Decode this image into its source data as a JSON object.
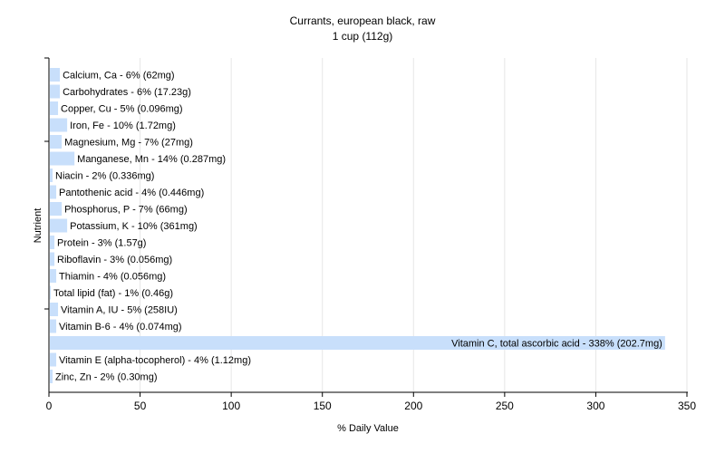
{
  "chart_data": {
    "type": "bar",
    "orientation": "horizontal",
    "title": "Currants, european black, raw",
    "subtitle": "1 cup (112g)",
    "xlabel": "% Daily Value",
    "ylabel": "Nutrient",
    "xlim": [
      0,
      350
    ],
    "xticks": [
      0,
      50,
      100,
      150,
      200,
      250,
      300,
      350
    ],
    "grid": true,
    "bar_color": "#c8dffb",
    "categories": [
      "Calcium, Ca - 6% (62mg)",
      "Carbohydrates - 6% (17.23g)",
      "Copper, Cu - 5% (0.096mg)",
      "Iron, Fe - 10% (1.72mg)",
      "Magnesium, Mg - 7% (27mg)",
      "Manganese, Mn - 14% (0.287mg)",
      "Niacin - 2% (0.336mg)",
      "Pantothenic acid - 4% (0.446mg)",
      "Phosphorus, P - 7% (66mg)",
      "Potassium, K - 10% (361mg)",
      "Protein - 3% (1.57g)",
      "Riboflavin - 3% (0.056mg)",
      "Thiamin - 4% (0.056mg)",
      "Total lipid (fat) - 1% (0.46g)",
      "Vitamin A, IU - 5% (258IU)",
      "Vitamin B-6 - 4% (0.074mg)",
      "Vitamin C, total ascorbic acid - 338% (202.7mg)",
      "Vitamin E (alpha-tocopherol) - 4% (1.12mg)",
      "Zinc, Zn - 2% (0.30mg)"
    ],
    "values": [
      6,
      6,
      5,
      10,
      7,
      14,
      2,
      4,
      7,
      10,
      3,
      3,
      4,
      1,
      5,
      4,
      338,
      4,
      2
    ]
  }
}
